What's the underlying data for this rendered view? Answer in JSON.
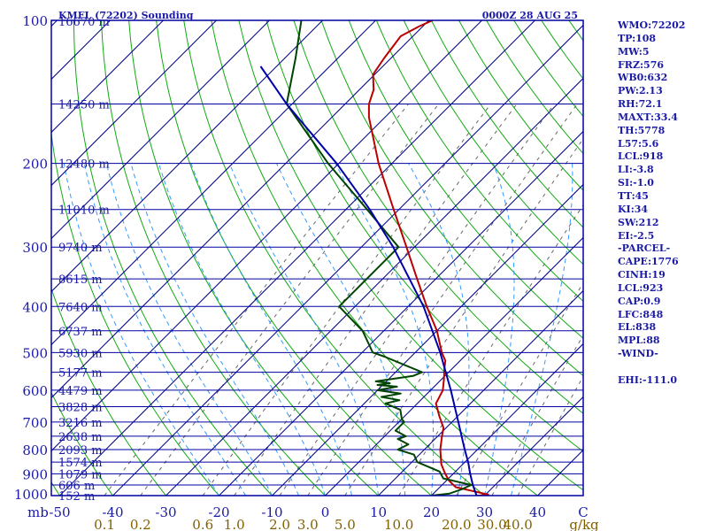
{
  "header": {
    "station": "KMFL (72202) Sounding",
    "time": "0000Z 28 AUG 25"
  },
  "side_panel": [
    "WMO:72202",
    "TP:108",
    "MW:5",
    "FRZ:576",
    "WB0:632",
    "PW:2.13",
    "RH:72.1",
    "MAXT:33.4",
    "TH:5778",
    "L57:5.6",
    "LCL:918",
    "LI:-3.8",
    "SI:-1.0",
    "TT:45",
    "KI:34",
    "SW:212",
    "EI:-2.5",
    "-PARCEL-",
    "CAPE:1776",
    "CINH:19",
    "LCL:923",
    "CAP:0.9",
    "LFC:848",
    "EL:838",
    "MPL:88",
    "-WIND-",
    "",
    "EHI:-111.0"
  ],
  "colors": {
    "frame": "#0000a0",
    "isobar": "#0000a0",
    "isotherm": "#00008c",
    "dry_adiabat": "#11aa11",
    "moist_adiabat": "#3399ff",
    "mixing_ratio": "#666666",
    "temperature": "#bb0000",
    "dewpoint": "#004400",
    "parcel": "#0000aa",
    "bottom_text": "#806000",
    "side_text": "#1a1aa6"
  },
  "chart_data": {
    "type": "skew-t",
    "pressure_axis": {
      "unit_label": "mb",
      "scale": "log",
      "range": [
        1000,
        100
      ],
      "ticks": [
        100,
        200,
        300,
        400,
        500,
        600,
        700,
        800,
        900,
        1000
      ]
    },
    "temperature_axis": {
      "unit_label": "C",
      "range": [
        -50,
        50
      ],
      "ticks": [
        "-50",
        "-40",
        "-30",
        "-20",
        "-10",
        "0",
        "10",
        "20",
        "30",
        "40"
      ],
      "last_label": "C"
    },
    "mixing_ratio_axis": {
      "unit_label": "g/kg",
      "ticks": [
        "0.1",
        "0.2",
        "0.6",
        "1.0",
        "2.0",
        "3.0",
        "5.0",
        "10.0",
        "20.0",
        "30.0",
        "40.0"
      ]
    },
    "height_labels": [
      {
        "p": 100,
        "label": "16670 m"
      },
      {
        "p": 150,
        "label": "14250 m"
      },
      {
        "p": 200,
        "label": "12480 m"
      },
      {
        "p": 250,
        "label": "11010 m"
      },
      {
        "p": 300,
        "label": "9740 m"
      },
      {
        "p": 350,
        "label": "8615 m"
      },
      {
        "p": 400,
        "label": "7640 m"
      },
      {
        "p": 450,
        "label": "6737 m"
      },
      {
        "p": 500,
        "label": "5930 m"
      },
      {
        "p": 550,
        "label": "5177 m"
      },
      {
        "p": 600,
        "label": "4479 m"
      },
      {
        "p": 650,
        "label": "3828 m"
      },
      {
        "p": 700,
        "label": "3216 m"
      },
      {
        "p": 750,
        "label": "2638 m"
      },
      {
        "p": 800,
        "label": "2093 m"
      },
      {
        "p": 850,
        "label": "1574 m"
      },
      {
        "p": 900,
        "label": "1079 m"
      },
      {
        "p": 950,
        "label": "606 m"
      },
      {
        "p": 1000,
        "label": "152 m"
      }
    ],
    "series": [
      {
        "key": "temperature",
        "points": [
          [
            1013,
            24.5
          ],
          [
            1005,
            27.5
          ],
          [
            995,
            30.5
          ],
          [
            960,
            23
          ],
          [
            930,
            20.5
          ],
          [
            900,
            18.5
          ],
          [
            860,
            16
          ],
          [
            800,
            13
          ],
          [
            750,
            10.8
          ],
          [
            720,
            9.5
          ],
          [
            680,
            6.5
          ],
          [
            640,
            3.5
          ],
          [
            600,
            2.3
          ],
          [
            570,
            0.5
          ],
          [
            540,
            -1.5
          ],
          [
            520,
            -2.8
          ],
          [
            500,
            -5
          ],
          [
            450,
            -10
          ],
          [
            400,
            -16.5
          ],
          [
            350,
            -23.5
          ],
          [
            300,
            -31.5
          ],
          [
            250,
            -41
          ],
          [
            200,
            -52.5
          ],
          [
            160,
            -63
          ],
          [
            150,
            -65.5
          ],
          [
            140,
            -67.3
          ],
          [
            130,
            -70.3
          ],
          [
            120,
            -71.3
          ],
          [
            108,
            -72.3
          ],
          [
            103,
            -70.7
          ],
          [
            100,
            -69.3
          ]
        ]
      },
      {
        "key": "dewpoint",
        "points": [
          [
            1013,
            21.5
          ],
          [
            1000,
            20
          ],
          [
            990,
            23
          ],
          [
            970,
            24.5
          ],
          [
            950,
            25.5
          ],
          [
            920,
            19
          ],
          [
            890,
            17
          ],
          [
            850,
            11
          ],
          [
            820,
            9
          ],
          [
            800,
            5
          ],
          [
            780,
            6
          ],
          [
            760,
            3
          ],
          [
            750,
            4
          ],
          [
            730,
            1
          ],
          [
            700,
            1
          ],
          [
            690,
            0
          ],
          [
            660,
            -2
          ],
          [
            640,
            -6
          ],
          [
            630,
            -4
          ],
          [
            620,
            -8
          ],
          [
            610,
            -5
          ],
          [
            600,
            -10
          ],
          [
            590,
            -7
          ],
          [
            585,
            -11
          ],
          [
            580,
            -9
          ],
          [
            575,
            -12
          ],
          [
            570,
            -10
          ],
          [
            560,
            -6
          ],
          [
            550,
            -5
          ],
          [
            510,
            -15
          ],
          [
            500,
            -18
          ],
          [
            450,
            -24
          ],
          [
            400,
            -33
          ],
          [
            300,
            -33
          ],
          [
            250,
            -46
          ],
          [
            200,
            -62
          ],
          [
            150,
            -81
          ],
          [
            120,
            -88
          ],
          [
            100,
            -94
          ]
        ]
      },
      {
        "key": "parcel",
        "points": [
          [
            1000,
            28.5
          ],
          [
            950,
            25.8
          ],
          [
            900,
            23.2
          ],
          [
            850,
            20.6
          ],
          [
            800,
            17.6
          ],
          [
            700,
            11.2
          ],
          [
            600,
            3.8
          ],
          [
            500,
            -5.3
          ],
          [
            400,
            -17.1
          ],
          [
            300,
            -34
          ],
          [
            250,
            -45.5
          ],
          [
            200,
            -60.4
          ],
          [
            150,
            -81
          ],
          [
            125,
            -93
          ]
        ]
      }
    ]
  }
}
